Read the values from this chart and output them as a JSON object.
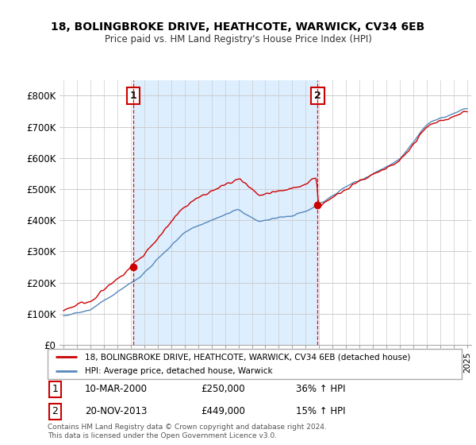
{
  "title1": "18, BOLINGBROKE DRIVE, HEATHCOTE, WARWICK, CV34 6EB",
  "title2": "Price paid vs. HM Land Registry's House Price Index (HPI)",
  "legend_line1": "18, BOLINGBROKE DRIVE, HEATHCOTE, WARWICK, CV34 6EB (detached house)",
  "legend_line2": "HPI: Average price, detached house, Warwick",
  "footer": "Contains HM Land Registry data © Crown copyright and database right 2024.\nThis data is licensed under the Open Government Licence v3.0.",
  "annotation1": {
    "num": "1",
    "date": "10-MAR-2000",
    "price": "£250,000",
    "pct": "36% ↑ HPI"
  },
  "annotation2": {
    "num": "2",
    "date": "20-NOV-2013",
    "price": "£449,000",
    "pct": "15% ↑ HPI"
  },
  "red_color": "#cc0000",
  "blue_color": "#5588bb",
  "shade_color": "#ddeeff",
  "ylim": [
    0,
    850000
  ],
  "yticks": [
    0,
    100000,
    200000,
    300000,
    400000,
    500000,
    600000,
    700000,
    800000
  ],
  "ytick_labels": [
    "£0",
    "£100K",
    "£200K",
    "£300K",
    "£400K",
    "£500K",
    "£600K",
    "£700K",
    "£800K"
  ],
  "marker1_x": 2000.19,
  "marker1_y": 250000,
  "marker2_x": 2013.89,
  "marker2_y": 449000,
  "xlim_left": 1994.7,
  "xlim_right": 2025.3
}
